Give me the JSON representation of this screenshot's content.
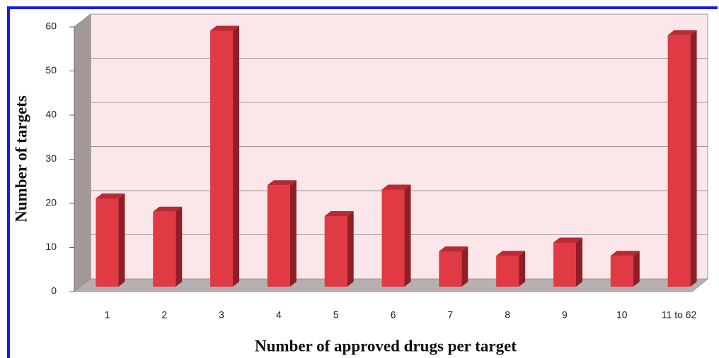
{
  "chart_data": {
    "type": "bar",
    "x_label": "Number of approved drugs per target",
    "y_label": "Number of targets",
    "categories": [
      "1",
      "2",
      "3",
      "4",
      "5",
      "6",
      "7",
      "8",
      "9",
      "10",
      "11 to 62"
    ],
    "values": [
      20,
      17,
      58,
      23,
      16,
      22,
      8,
      7,
      10,
      7,
      57
    ],
    "color": "#e03a45",
    "ylim": [
      0,
      60
    ],
    "yticks": [
      0,
      10,
      20,
      30,
      40,
      50,
      60
    ],
    "grid": true
  }
}
